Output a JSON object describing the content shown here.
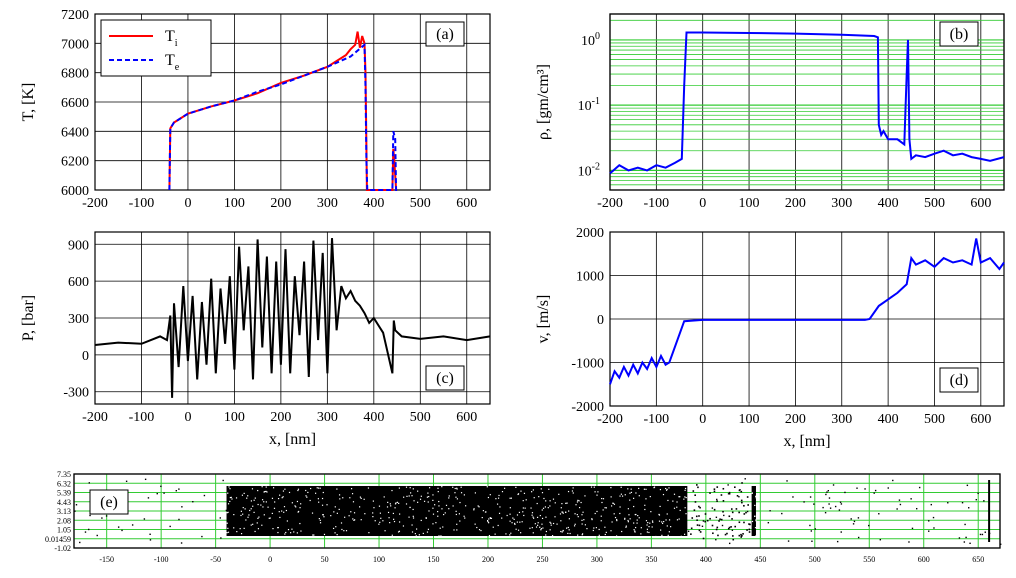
{
  "chart_data": [
    {
      "id": "a",
      "type": "line",
      "panel_label": "(a)",
      "ylabel": "T, [K]",
      "xlabel": "",
      "xlim": [
        -200,
        650
      ],
      "ylim": [
        6000,
        7200
      ],
      "xticks": [
        "-200",
        "-100",
        "0",
        "100",
        "200",
        "300",
        "400",
        "500",
        "600"
      ],
      "yticks": [
        "6000",
        "6200",
        "6400",
        "6600",
        "6800",
        "7000",
        "7200"
      ],
      "legend_position": "top-left",
      "grid": true,
      "series": [
        {
          "name": "T",
          "subscript": "i",
          "color": "#ff0000",
          "style": "solid",
          "x": [
            -40,
            -38,
            -30,
            -20,
            0,
            50,
            100,
            150,
            200,
            250,
            300,
            340,
            350,
            360,
            365,
            370,
            375,
            380,
            382,
            384,
            385,
            440,
            442,
            444,
            446,
            448,
            450
          ],
          "y": [
            6000,
            6420,
            6460,
            6480,
            6520,
            6570,
            6610,
            6660,
            6730,
            6780,
            6840,
            6920,
            6960,
            6990,
            7080,
            6970,
            7050,
            7000,
            6800,
            6300,
            6000,
            6000,
            6280,
            6200,
            6100,
            6000,
            6000
          ]
        },
        {
          "name": "T",
          "subscript": "e",
          "color": "#0000ff",
          "style": "dashed",
          "x": [
            -40,
            -38,
            -30,
            0,
            50,
            100,
            150,
            200,
            250,
            300,
            350,
            380,
            382,
            384,
            386,
            440,
            442,
            446,
            448,
            450
          ],
          "y": [
            6000,
            6420,
            6460,
            6520,
            6570,
            6610,
            6670,
            6720,
            6780,
            6840,
            6910,
            6990,
            6700,
            6200,
            6000,
            6000,
            6400,
            6350,
            6000,
            6000
          ]
        }
      ]
    },
    {
      "id": "b",
      "type": "line",
      "panel_label": "(b)",
      "ylabel": "ρ, [gm/cm³]",
      "xlabel": "",
      "scale_y": "log",
      "xlim": [
        -200,
        650
      ],
      "ylim": [
        0.005,
        2.5
      ],
      "xticks": [
        "-200",
        "-100",
        "0",
        "100",
        "200",
        "300",
        "400",
        "500",
        "600"
      ],
      "yticks": [
        {
          "base": "10",
          "exp": "0",
          "v": 1
        },
        {
          "base": "10",
          "exp": "-1",
          "v": 0.1
        },
        {
          "base": "10",
          "exp": "-2",
          "v": 0.01
        }
      ],
      "grid": true,
      "grid_color": "#33cc33",
      "series": [
        {
          "name": "",
          "color": "#0000ff",
          "x": [
            -200,
            -180,
            -160,
            -140,
            -120,
            -100,
            -80,
            -60,
            -45,
            -40,
            -35,
            0,
            100,
            200,
            300,
            370,
            378,
            380,
            385,
            390,
            400,
            420,
            435,
            440,
            443,
            446,
            450,
            460,
            480,
            500,
            520,
            540,
            560,
            580,
            600,
            620,
            650
          ],
          "y": [
            0.009,
            0.012,
            0.01,
            0.011,
            0.01,
            0.012,
            0.011,
            0.013,
            0.015,
            0.2,
            1.3,
            1.3,
            1.28,
            1.25,
            1.2,
            1.15,
            1.1,
            0.05,
            0.035,
            0.04,
            0.03,
            0.03,
            0.025,
            0.3,
            1.0,
            0.03,
            0.015,
            0.017,
            0.016,
            0.018,
            0.02,
            0.017,
            0.018,
            0.016,
            0.015,
            0.014,
            0.016
          ]
        }
      ]
    },
    {
      "id": "c",
      "type": "line",
      "panel_label": "(c)",
      "ylabel": "P, [bar]",
      "xlabel": "x, [nm]",
      "xlim": [
        -200,
        650
      ],
      "ylim": [
        -400,
        1000
      ],
      "xticks": [
        "-200",
        "-100",
        "0",
        "100",
        "200",
        "300",
        "400",
        "500",
        "600"
      ],
      "yticks": [
        "-300",
        "0",
        "300",
        "600",
        "900"
      ],
      "grid": true,
      "series": [
        {
          "name": "",
          "color": "#000000",
          "x": [
            -200,
            -150,
            -100,
            -60,
            -45,
            -38,
            -34,
            -30,
            -20,
            -10,
            0,
            10,
            20,
            30,
            40,
            50,
            60,
            70,
            80,
            90,
            100,
            110,
            120,
            130,
            140,
            150,
            160,
            170,
            180,
            190,
            200,
            210,
            220,
            230,
            240,
            250,
            260,
            270,
            280,
            290,
            300,
            310,
            320,
            330,
            340,
            350,
            360,
            370,
            380,
            390,
            400,
            420,
            440,
            443,
            446,
            460,
            500,
            550,
            600,
            650
          ],
          "y": [
            80,
            100,
            90,
            150,
            120,
            320,
            -350,
            420,
            -100,
            560,
            -50,
            480,
            -200,
            430,
            -80,
            620,
            -150,
            540,
            90,
            640,
            -120,
            880,
            200,
            720,
            -200,
            940,
            60,
            800,
            -150,
            760,
            -80,
            860,
            -150,
            640,
            160,
            760,
            -180,
            930,
            120,
            830,
            -150,
            950,
            200,
            560,
            460,
            520,
            440,
            400,
            340,
            260,
            300,
            180,
            -150,
            280,
            200,
            150,
            130,
            150,
            120,
            150
          ]
        }
      ]
    },
    {
      "id": "d",
      "type": "line",
      "panel_label": "(d)",
      "ylabel": "v, [m/s]",
      "xlabel": "x, [nm]",
      "xlim": [
        -200,
        650
      ],
      "ylim": [
        -2000,
        2000
      ],
      "xticks": [
        "-200",
        "-100",
        "0",
        "100",
        "200",
        "300",
        "400",
        "500",
        "600"
      ],
      "yticks": [
        "-2000",
        "-1000",
        "0",
        "1000",
        "2000"
      ],
      "grid": true,
      "series": [
        {
          "name": "",
          "color": "#0000ff",
          "x": [
            -200,
            -190,
            -180,
            -170,
            -160,
            -150,
            -140,
            -130,
            -120,
            -110,
            -100,
            -90,
            -80,
            -72,
            -40,
            0,
            100,
            200,
            300,
            350,
            360,
            380,
            400,
            420,
            440,
            450,
            460,
            480,
            500,
            520,
            540,
            560,
            580,
            590,
            600,
            620,
            640,
            650
          ],
          "y": [
            -1500,
            -1200,
            -1350,
            -1100,
            -1300,
            -1050,
            -1250,
            -1000,
            -1150,
            -900,
            -1100,
            -850,
            -1050,
            -1000,
            -50,
            -20,
            -20,
            -20,
            -20,
            -20,
            0,
            300,
            450,
            600,
            800,
            1400,
            1250,
            1350,
            1200,
            1400,
            1300,
            1350,
            1250,
            1850,
            1300,
            1400,
            1150,
            1300
          ]
        }
      ]
    },
    {
      "id": "e",
      "type": "scatter",
      "panel_label": "(e)",
      "xlim": [
        -180,
        670
      ],
      "ylim": [
        -1.02,
        7.35
      ],
      "xticks": [
        "-150",
        "-100",
        "-50",
        "0",
        "50",
        "100",
        "150",
        "200",
        "250",
        "300",
        "350",
        "400",
        "450",
        "500",
        "550",
        "600",
        "650"
      ],
      "yticks": [
        "7.35",
        "6.32",
        "5.39",
        "4.43",
        "3.13",
        "2.08",
        "1.05",
        "0.01459",
        "-1.02"
      ],
      "grid": true,
      "grid_color": "#33cc33",
      "regions": [
        {
          "x0": -40,
          "x1": 383,
          "density": "dense"
        },
        {
          "x0": 442,
          "x1": 446,
          "density": "dense"
        }
      ]
    }
  ]
}
